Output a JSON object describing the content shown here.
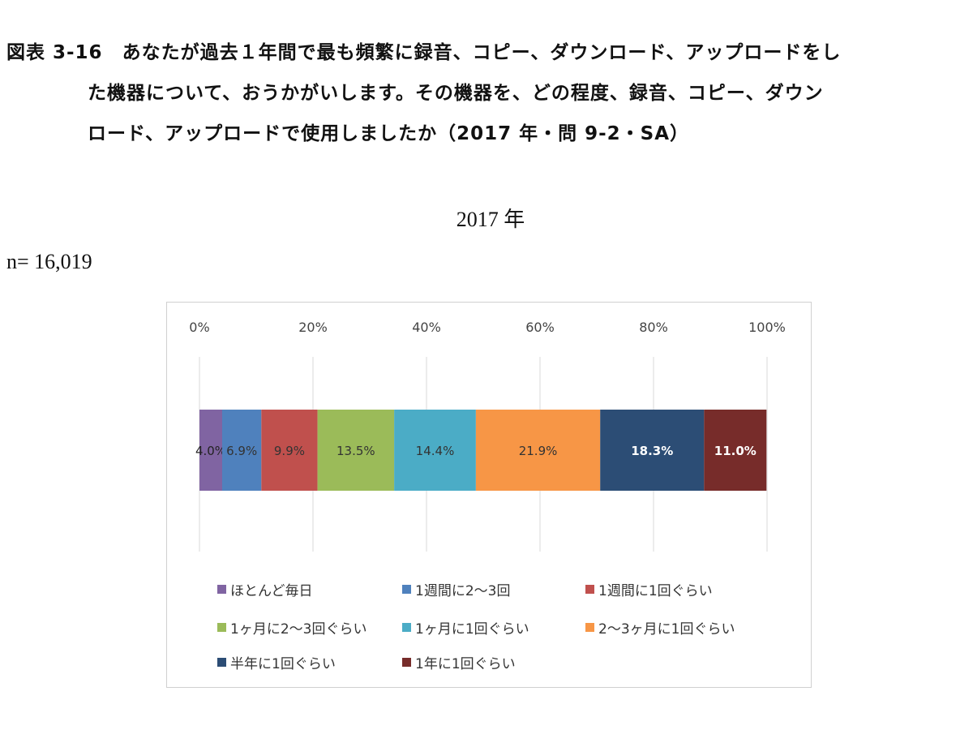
{
  "heading": {
    "line1": "図表 3-16　あなたが過去１年間で最も頻繁に録音、コピー、ダウンロード、アップロードをし",
    "line2": "た機器について、おうかがいします。その機器を、どの程度、録音、コピー、ダウン",
    "line3": "ロード、アップロードで使用しましたか（2017 年・問 9-2・SA）"
  },
  "subtitle": "2017 年",
  "sample": "n= 16,019",
  "chart_data": {
    "type": "bar",
    "orientation": "horizontal-stacked-100",
    "xlim": [
      0,
      100
    ],
    "ticks": [
      "0%",
      "20%",
      "40%",
      "60%",
      "80%",
      "100%"
    ],
    "tick_values": [
      0,
      20,
      40,
      60,
      80,
      100
    ],
    "grid": true,
    "legend_placement": "bottom",
    "series": [
      {
        "name": "ほとんど毎日",
        "value": 4.0,
        "label": "4.0%",
        "color": "#8064a2",
        "label_color": "#222"
      },
      {
        "name": "1週間に2〜3回",
        "value": 6.9,
        "label": "6.9%",
        "color": "#4f81bd",
        "label_color": "#333"
      },
      {
        "name": "1週間に1回ぐらい",
        "value": 9.9,
        "label": "9.9%",
        "color": "#c0504d",
        "label_color": "#333"
      },
      {
        "name": "1ヶ月に2〜3回ぐらい",
        "value": 13.5,
        "label": "13.5%",
        "color": "#9bbb59",
        "label_color": "#333"
      },
      {
        "name": "1ヶ月に1回ぐらい",
        "value": 14.4,
        "label": "14.4%",
        "color": "#4bacc6",
        "label_color": "#333"
      },
      {
        "name": "2〜3ヶ月に1回ぐらい",
        "value": 21.9,
        "label": "21.9%",
        "color": "#f79646",
        "label_color": "#333"
      },
      {
        "name": "半年に1回ぐらい",
        "value": 18.3,
        "label": "18.3%",
        "color": "#2c4d75",
        "label_color": "#fff"
      },
      {
        "name": "1年に1回ぐらい",
        "value": 11.0,
        "label": "11.0%",
        "color": "#772c2a",
        "label_color": "#fff"
      }
    ]
  }
}
